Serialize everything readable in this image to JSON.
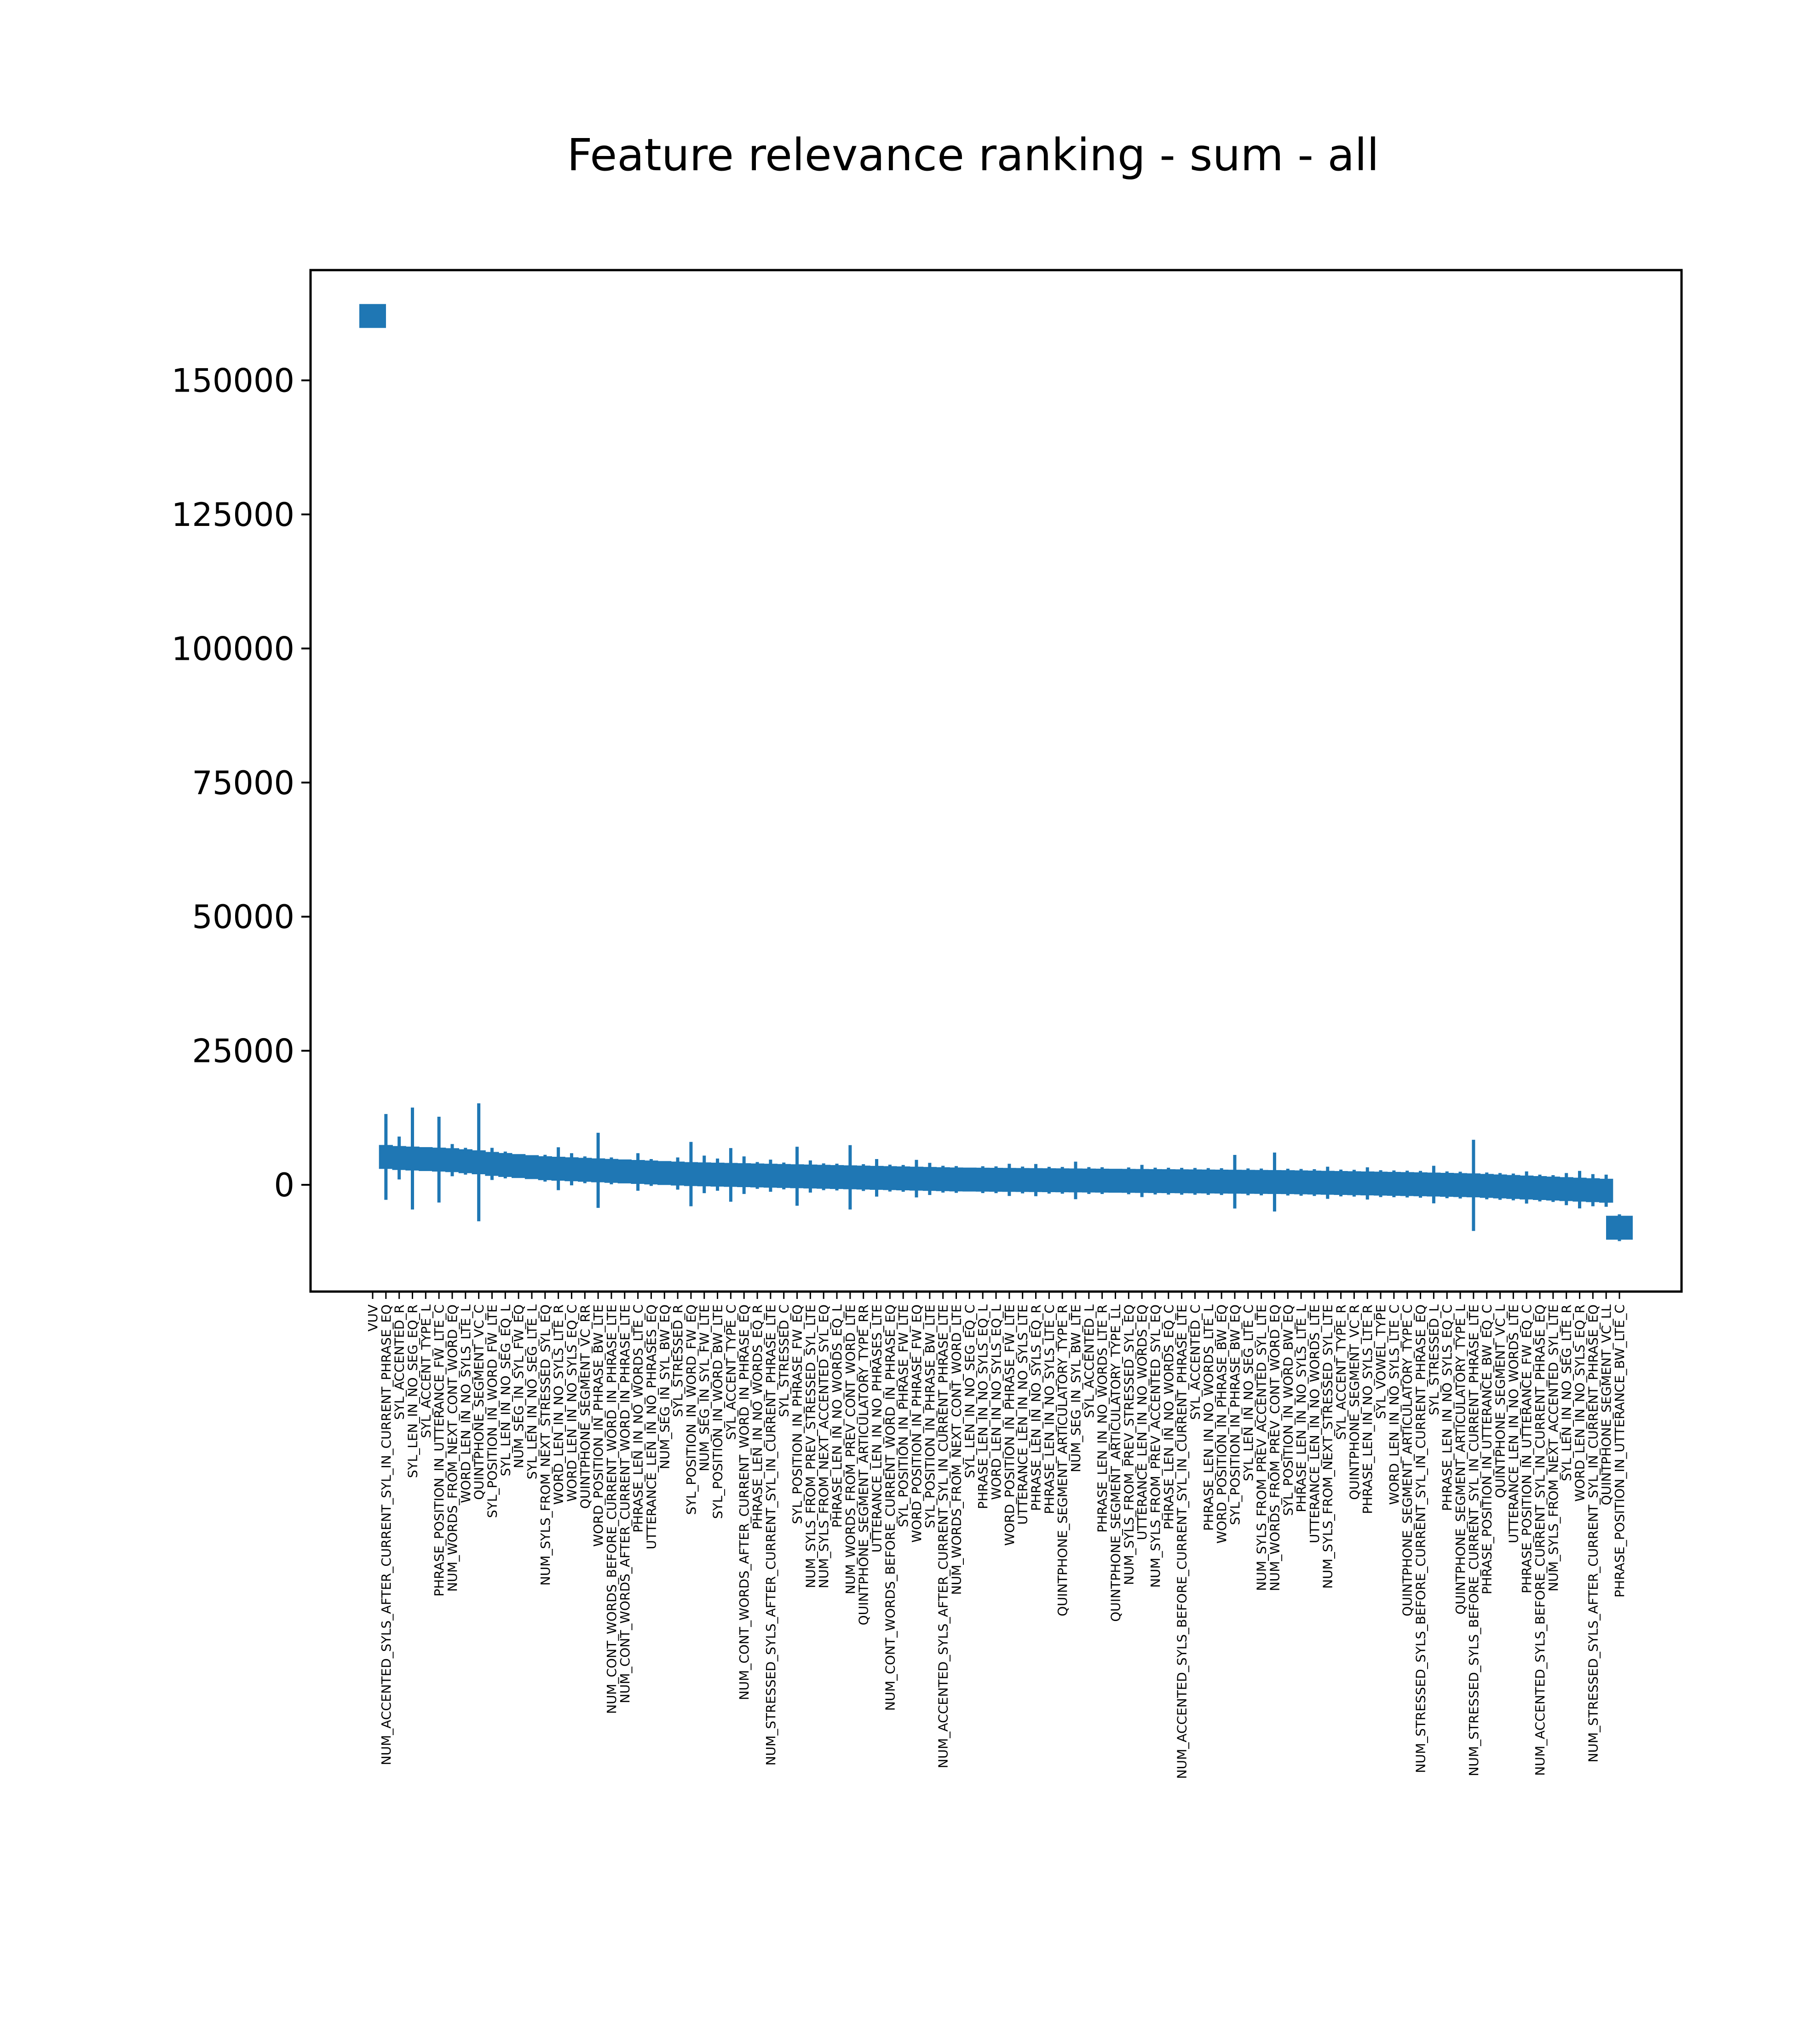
{
  "chart_data": {
    "type": "bar",
    "title": "Feature relevance ranking - sum - all",
    "xlabel": "",
    "ylabel": "",
    "ylim": [
      -16000,
      170000
    ],
    "yticks": [
      0,
      25000,
      50000,
      75000,
      100000,
      125000,
      150000
    ],
    "ytick_labels": [
      "0",
      "25000",
      "50000",
      "75000",
      "100000",
      "125000",
      "150000"
    ],
    "grid": false,
    "legend": "none",
    "color": "#1f77b4",
    "categories": [
      "VUV",
      "NUM_ACCENTED_SYLS_AFTER_CURRENT_SYL_IN_CURRENT_PHRASE_EQ",
      "SYL_ACCENTED_R",
      "SYL_LEN_IN_NO_SEG_EQ_R",
      "SYL_ACCENT_TYPE_L",
      "PHRASE_POSITION_IN_UTTERANCE_FW_LTE_C",
      "NUM_WORDS_FROM_NEXT_CONT_WORD_EQ",
      "WORD_LEN_IN_NO_SYLS_LTE_L",
      "QUINTPHONE_SEGMENT_VC_C",
      "SYL_POSITION_IN_WORD_FW_LTE",
      "SYL_LEN_IN_NO_SEG_EQ_L",
      "NUM_SEG_IN_SYL_FW_EQ",
      "SYL_LEN_IN_NO_SEG_LTE_L",
      "NUM_SYLS_FROM_NEXT_STRESSED_SYL_EQ",
      "WORD_LEN_IN_NO_SYLS_LTE_R",
      "WORD_LEN_IN_NO_SYLS_EQ_C",
      "QUINTPHONE_SEGMENT_VC_RR",
      "WORD_POSITION_IN_PHRASE_BW_LTE",
      "NUM_CONT_WORDS_BEFORE_CURRENT_WORD_IN_PHRASE_LTE",
      "NUM_CONT_WORDS_AFTER_CURRENT_WORD_IN_PHRASE_LTE",
      "PHRASE_LEN_IN_NO_WORDS_LTE_C",
      "UTTERANCE_LEN_IN_NO_PHRASES_EQ",
      "NUM_SEG_IN_SYL_BW_EQ",
      "SYL_STRESSED_R",
      "SYL_POSITION_IN_WORD_FW_EQ",
      "NUM_SEG_IN_SYL_FW_LTE",
      "SYL_POSITION_IN_WORD_BW_LTE",
      "SYL_ACCENT_TYPE_C",
      "NUM_CONT_WORDS_AFTER_CURRENT_WORD_IN_PHRASE_EQ",
      "PHRASE_LEN_IN_NO_WORDS_EQ_R",
      "NUM_STRESSED_SYLS_AFTER_CURRENT_SYL_IN_CURRENT_PHRASE_LTE",
      "SYL_STRESSED_C",
      "SYL_POSITION_IN_PHRASE_FW_EQ",
      "NUM_SYLS_FROM_PREV_STRESSED_SYL_LTE",
      "NUM_SYLS_FROM_NEXT_ACCENTED_SYL_EQ",
      "PHRASE_LEN_IN_NO_WORDS_EQ_L",
      "NUM_WORDS_FROM_PREV_CONT_WORD_LTE",
      "QUINTPHONE_SEGMENT_ARTICULATORY_TYPE_RR",
      "UTTERANCE_LEN_IN_NO_PHRASES_LTE",
      "NUM_CONT_WORDS_BEFORE_CURRENT_WORD_IN_PHRASE_EQ",
      "SYL_POSITION_IN_PHRASE_FW_LTE",
      "WORD_POSITION_IN_PHRASE_FW_EQ",
      "SYL_POSITION_IN_PHRASE_BW_LTE",
      "NUM_ACCENTED_SYLS_AFTER_CURRENT_SYL_IN_CURRENT_PHRASE_LTE",
      "NUM_WORDS_FROM_NEXT_CONT_WORD_LTE",
      "SYL_LEN_IN_NO_SEG_EQ_C",
      "PHRASE_LEN_IN_NO_SYLS_EQ_L",
      "WORD_LEN_IN_NO_SYLS_EQ_L",
      "WORD_POSITION_IN_PHRASE_FW_LTE",
      "UTTERANCE_LEN_IN_NO_SYLS_LTE",
      "PHRASE_LEN_IN_NO_SYLS_EQ_R",
      "PHRASE_LEN_IN_NO_SYLS_LTE_C",
      "QUINTPHONE_SEGMENT_ARTICULATORY_TYPE_R",
      "NUM_SEG_IN_SYL_BW_LTE",
      "SYL_ACCENTED_L",
      "PHRASE_LEN_IN_NO_WORDS_LTE_R",
      "QUINTPHONE_SEGMENT_ARTICULATORY_TYPE_LL",
      "NUM_SYLS_FROM_PREV_STRESSED_SYL_EQ",
      "UTTERANCE_LEN_IN_NO_WORDS_EQ",
      "NUM_SYLS_FROM_PREV_ACCENTED_SYL_EQ",
      "PHRASE_LEN_IN_NO_WORDS_EQ_C",
      "NUM_ACCENTED_SYLS_BEFORE_CURRENT_SYL_IN_CURRENT_PHRASE_LTE",
      "SYL_ACCENTED_C",
      "PHRASE_LEN_IN_NO_WORDS_LTE_L",
      "WORD_POSITION_IN_PHRASE_BW_EQ",
      "SYL_POSITION_IN_PHRASE_BW_EQ",
      "SYL_LEN_IN_NO_SEG_LTE_C",
      "NUM_SYLS_FROM_PREV_ACCENTED_SYL_LTE",
      "NUM_WORDS_FROM_PREV_CONT_WORD_EQ",
      "SYL_POSITION_IN_WORD_BW_EQ",
      "PHRASE_LEN_IN_NO_SYLS_LTE_L",
      "UTTERANCE_LEN_IN_NO_WORDS_LTE",
      "NUM_SYLS_FROM_NEXT_STRESSED_SYL_LTE",
      "SYL_ACCENT_TYPE_R",
      "QUINTPHONE_SEGMENT_VC_R",
      "PHRASE_LEN_IN_NO_SYLS_LTE_R",
      "SYL_VOWEL_TYPE",
      "WORD_LEN_IN_NO_SYLS_LTE_C",
      "QUINTPHONE_SEGMENT_ARTICULATORY_TYPE_C",
      "NUM_STRESSED_SYLS_BEFORE_CURRENT_SYL_IN_CURRENT_PHRASE_EQ",
      "SYL_STRESSED_L",
      "PHRASE_LEN_IN_NO_SYLS_EQ_C",
      "QUINTPHONE_SEGMENT_ARTICULATORY_TYPE_L",
      "NUM_STRESSED_SYLS_BEFORE_CURRENT_SYL_IN_CURRENT_PHRASE_LTE",
      "PHRASE_POSITION_IN_UTTERANCE_BW_EQ_C",
      "QUINTPHONE_SEGMENT_VC_L",
      "UTTERANCE_LEN_IN_NO_WORDS_LTE",
      "PHRASE_POSITION_IN_UTTERANCE_FW_EQ_C",
      "NUM_ACCENTED_SYLS_BEFORE_CURRENT_SYL_IN_CURRENT_PHRASE_EQ",
      "NUM_SYLS_FROM_NEXT_ACCENTED_SYL_LTE",
      "SYL_LEN_IN_NO_SEG_LTE_R",
      "WORD_LEN_IN_NO_SYLS_EQ_R",
      "NUM_STRESSED_SYLS_AFTER_CURRENT_SYL_IN_CURRENT_PHRASE_EQ",
      "QUINTPHONE_SEGMENT_VC_LL",
      "PHRASE_POSITION_IN_UTTERANCE_BW_LTE_C"
    ],
    "values": [
      162000,
      5200,
      5000,
      4900,
      4800,
      4700,
      4600,
      4400,
      4200,
      3900,
      3700,
      3500,
      3300,
      3100,
      3000,
      2900,
      2800,
      2700,
      2600,
      2500,
      2400,
      2300,
      2200,
      2100,
      2000,
      1950,
      1900,
      1850,
      1800,
      1750,
      1700,
      1650,
      1600,
      1550,
      1500,
      1450,
      1400,
      1350,
      1300,
      1250,
      1200,
      1150,
      1100,
      1050,
      1000,
      980,
      960,
      940,
      920,
      900,
      880,
      860,
      840,
      820,
      800,
      780,
      760,
      740,
      720,
      700,
      680,
      660,
      640,
      620,
      600,
      580,
      560,
      540,
      520,
      500,
      460,
      420,
      380,
      340,
      300,
      260,
      220,
      180,
      140,
      100,
      50,
      0,
      -50,
      -100,
      -200,
      -300,
      -400,
      -500,
      -600,
      -700,
      -800,
      -900,
      -1000,
      -1100,
      -8000
    ],
    "errors": [
      0,
      8000,
      4000,
      9500,
      2000,
      8000,
      3000,
      2500,
      11000,
      3000,
      2500,
      2000,
      2000,
      2500,
      4000,
      3000,
      2500,
      7000,
      2500,
      2000,
      3500,
      2500,
      2000,
      3000,
      6000,
      3500,
      3000,
      5000,
      3500,
      2500,
      3000,
      2500,
      5500,
      3000,
      2500,
      2500,
      6000,
      2500,
      3500,
      2500,
      2500,
      3500,
      3000,
      2500,
      2500,
      2000,
      2500,
      2500,
      3000,
      2500,
      3000,
      2500,
      2500,
      3500,
      2500,
      2500,
      2000,
      2500,
      3000,
      2500,
      2500,
      2500,
      2500,
      2500,
      2500,
      5000,
      2500,
      2500,
      5500,
      2500,
      2500,
      2500,
      3000,
      2500,
      2500,
      3000,
      2500,
      2500,
      2500,
      2500,
      3500,
      2500,
      2500,
      8500,
      2500,
      2500,
      2500,
      3000,
      2500,
      2500,
      3000,
      3500,
      3000,
      3000,
      2500
    ]
  }
}
